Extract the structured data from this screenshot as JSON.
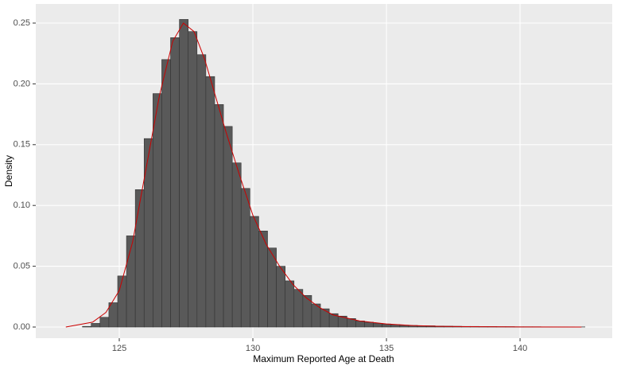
{
  "chart_data": {
    "type": "histogram",
    "x_label": "Maximum Reported Age at Death",
    "y_label": "Density",
    "bins": [
      122.96,
      123.29,
      123.62,
      123.95,
      124.28,
      124.61,
      124.94,
      125.27,
      125.6,
      125.93,
      126.26,
      126.59,
      126.92,
      127.25,
      127.58,
      127.91,
      128.24,
      128.57,
      128.9,
      129.23,
      129.56,
      129.89,
      130.22,
      130.55,
      130.88,
      131.21,
      131.54,
      131.87,
      132.2,
      132.53,
      132.86,
      133.19,
      133.52,
      133.85,
      134.18,
      134.51,
      134.84,
      135.17,
      135.5,
      135.83,
      136.16,
      136.49,
      136.82,
      137.15,
      137.48,
      137.81,
      138.14,
      138.47,
      138.8,
      139.13,
      139.46,
      139.79,
      140.12,
      140.45,
      140.78,
      141.11,
      141.44,
      141.77,
      142.1,
      142.43
    ],
    "counts": [
      0,
      0,
      0.0005,
      0.003,
      0.008,
      0.02,
      0.042,
      0.075,
      0.113,
      0.155,
      0.192,
      0.22,
      0.238,
      0.253,
      0.243,
      0.224,
      0.206,
      0.183,
      0.165,
      0.135,
      0.114,
      0.091,
      0.079,
      0.065,
      0.05,
      0.038,
      0.031,
      0.026,
      0.019,
      0.015,
      0.011,
      0.009,
      0.007,
      0.005,
      0.004,
      0.003,
      0.0025,
      0.002,
      0.0015,
      0.0013,
      0.001,
      0.001,
      0.0008,
      0.0007,
      0.0006,
      0.0005,
      0.0005,
      0.0004,
      0.0004,
      0.0003,
      0.0003,
      0.0002,
      0.0002,
      0.0002,
      0.0001,
      0.0001,
      0.0001,
      0.0001,
      0.0001
    ],
    "bar_color": "#595959",
    "density": {
      "color": "#cc0000",
      "x": [
        123,
        124,
        124.5,
        125,
        125.5,
        126,
        126.5,
        127,
        127.4,
        127.8,
        128.2,
        128.6,
        129,
        129.5,
        130,
        130.5,
        131,
        131.5,
        132,
        132.5,
        133,
        134,
        135,
        136,
        137,
        138,
        140,
        142.3
      ],
      "y": [
        0,
        0.004,
        0.012,
        0.03,
        0.07,
        0.13,
        0.19,
        0.235,
        0.25,
        0.243,
        0.22,
        0.19,
        0.16,
        0.125,
        0.092,
        0.068,
        0.05,
        0.035,
        0.024,
        0.016,
        0.01,
        0.005,
        0.0025,
        0.0012,
        0.0006,
        0.0003,
        0.0001,
        0
      ]
    },
    "xlim": [
      121.875,
      143.45
    ],
    "ylim": [
      -0.00916,
      0.2657
    ],
    "xticks": [
      125,
      130,
      135,
      140
    ],
    "yticks": [
      {
        "value": 0,
        "label": "0.00"
      },
      {
        "value": 0.05,
        "label": "0.05"
      },
      {
        "value": 0.1,
        "label": "0.10"
      },
      {
        "value": 0.15,
        "label": "0.15"
      },
      {
        "value": 0.2,
        "label": "0.20"
      },
      {
        "value": 0.25,
        "label": "0.25"
      }
    ],
    "grid": true
  }
}
